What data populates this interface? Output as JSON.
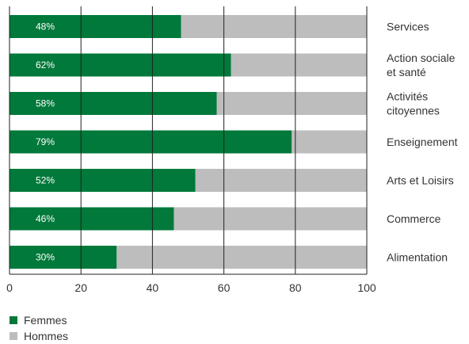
{
  "chart_data": {
    "type": "bar",
    "orientation": "horizontal",
    "stacked": true,
    "categories": [
      [
        "Services"
      ],
      [
        "Action sociale",
        "et santé"
      ],
      [
        "Activités",
        "citoyennes"
      ],
      [
        "Enseignement"
      ],
      [
        "Arts et Loisirs"
      ],
      [
        "Commerce"
      ],
      [
        "Alimentation"
      ]
    ],
    "series": [
      {
        "name": "Femmes",
        "color": "#00793a",
        "values": [
          48,
          62,
          58,
          79,
          52,
          46,
          30
        ]
      },
      {
        "name": "Hommes",
        "color": "#bdbdbd",
        "values": [
          52,
          38,
          42,
          21,
          48,
          54,
          70
        ]
      }
    ],
    "data_labels": [
      "48%",
      "62%",
      "58%",
      "79%",
      "52%",
      "46%",
      "30%"
    ],
    "xlim": [
      0,
      100
    ],
    "xticks": [
      0,
      20,
      40,
      60,
      80,
      100
    ],
    "grid": true,
    "legend_position": "bottom-left"
  }
}
